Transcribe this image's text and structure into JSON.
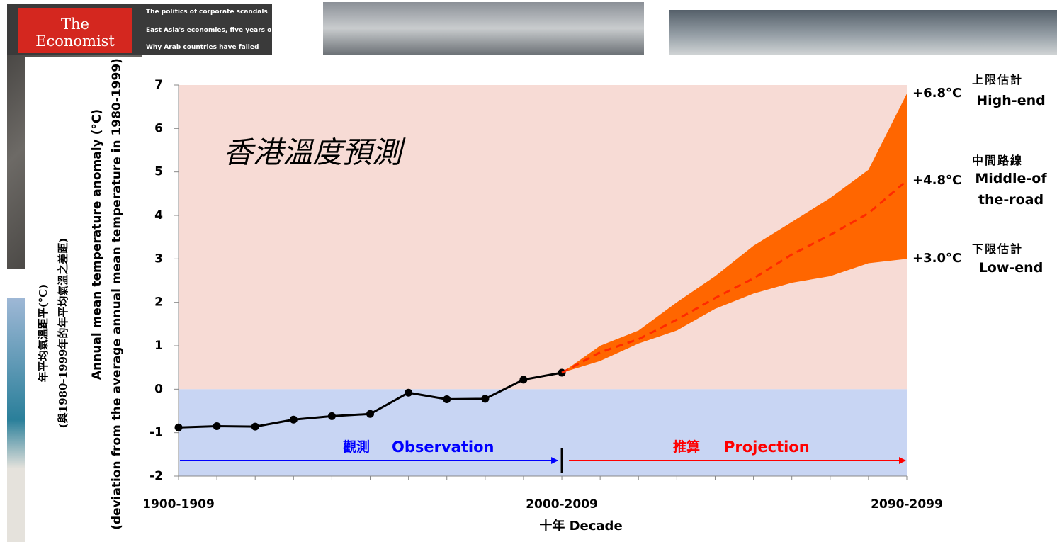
{
  "background": {
    "magazine_title": "The Economist",
    "magazine_lines": [
      "The politics of corporate scandals",
      "East Asia's economies, five years on",
      "Why Arab countries have failed"
    ]
  },
  "chart_data": {
    "type": "line",
    "title": "香港溫度預測",
    "y_label": [
      "年平均氣溫距平(°C)",
      "(與1980-1999年的年平均氣溫之差距)",
      "Annual mean temperature anomaly (°C)",
      "(deviation from the average annual mean temperature in 1980-1999)"
    ],
    "x_label": "十年 Decade",
    "categories": [
      "1900-1909",
      null,
      null,
      null,
      null,
      null,
      null,
      null,
      null,
      null,
      "2000-2009",
      null,
      null,
      null,
      null,
      null,
      null,
      null,
      null,
      "2090-2099"
    ],
    "ylim": [
      -2,
      7
    ],
    "yticks": [
      -2,
      -1,
      0,
      1,
      2,
      3,
      4,
      5,
      6,
      7
    ],
    "above_color": "#f7dbd5",
    "below_color": "#c8d5f3",
    "fill_between": [
      1,
      3
    ],
    "series": [
      {
        "name": "Observation",
        "name_zh": "觀測",
        "color": "#000000",
        "values": [
          -0.88,
          -0.85,
          -0.86,
          -0.7,
          -0.62,
          -0.57,
          -0.08,
          -0.23,
          -0.22,
          0.22,
          0.38,
          null,
          null,
          null,
          null,
          null,
          null,
          null,
          null,
          null
        ]
      },
      {
        "name": "High-end",
        "name_zh": "上限估計",
        "color": "#ff6600",
        "values": [
          null,
          null,
          null,
          null,
          null,
          null,
          null,
          null,
          null,
          null,
          0.38,
          1.0,
          1.35,
          2.0,
          2.6,
          3.3,
          3.85,
          4.4,
          5.05,
          6.8
        ],
        "value_labels": [
          null,
          null,
          null,
          null,
          null,
          null,
          null,
          null,
          null,
          null,
          null,
          null,
          null,
          null,
          null,
          null,
          null,
          null,
          null,
          "+6.8°C"
        ]
      },
      {
        "name": "Middle-of the-road",
        "name_zh": "中間路線",
        "color": "#ff2a00",
        "dashed": true,
        "values": [
          null,
          null,
          null,
          null,
          null,
          null,
          null,
          null,
          null,
          null,
          0.38,
          0.85,
          1.15,
          1.6,
          2.1,
          2.55,
          3.1,
          3.55,
          4.05,
          4.8
        ],
        "value_labels": [
          null,
          null,
          null,
          null,
          null,
          null,
          null,
          null,
          null,
          null,
          null,
          null,
          null,
          null,
          null,
          null,
          null,
          null,
          null,
          "+4.8°C"
        ]
      },
      {
        "name": "Low-end",
        "name_zh": "下限估計",
        "color": "#ff6600",
        "values": [
          null,
          null,
          null,
          null,
          null,
          null,
          null,
          null,
          null,
          null,
          0.38,
          0.65,
          1.05,
          1.35,
          1.85,
          2.2,
          2.45,
          2.6,
          2.9,
          3.0
        ],
        "value_labels": [
          null,
          null,
          null,
          null,
          null,
          null,
          null,
          null,
          null,
          null,
          null,
          null,
          null,
          null,
          null,
          null,
          null,
          null,
          null,
          "+3.0°C"
        ]
      }
    ],
    "projection_label": {
      "zh": "推算",
      "en": "Projection"
    }
  }
}
